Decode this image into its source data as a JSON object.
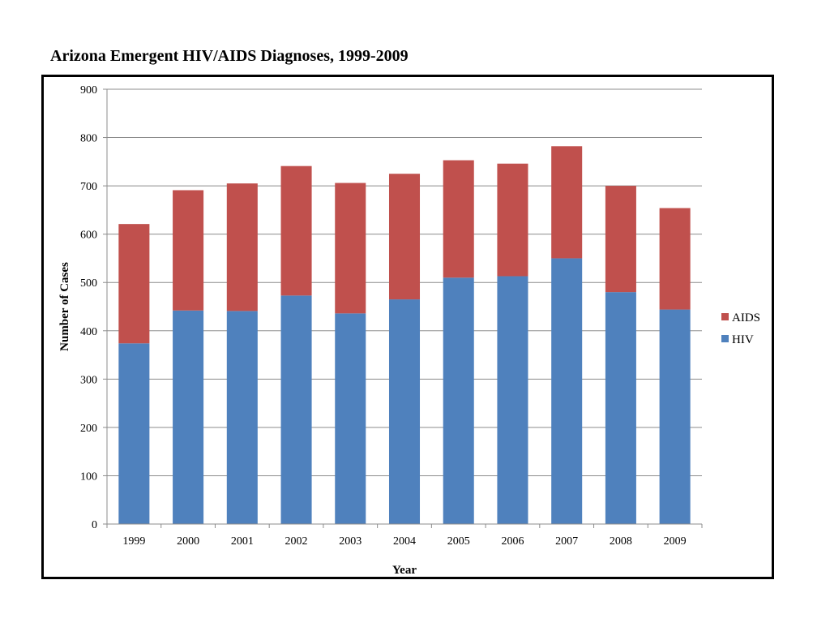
{
  "page": {
    "title": "Arizona Emergent HIV/AIDS Diagnoses, 1999-2009"
  },
  "colors": {
    "hiv": "#4f81bd",
    "aids": "#c0504d",
    "grid": "#8c8c8c",
    "axis": "#8c8c8c"
  },
  "chart_data": {
    "type": "bar",
    "stacked": true,
    "title": "Arizona Emergent HIV/AIDS Diagnoses, 1999-2009",
    "xlabel": "Year",
    "ylabel": "Number of Cases",
    "ylim": [
      0,
      900
    ],
    "yticks": [
      0,
      100,
      200,
      300,
      400,
      500,
      600,
      700,
      800,
      900
    ],
    "grid": true,
    "legend_position": "right",
    "categories": [
      "1999",
      "2000",
      "2001",
      "2002",
      "2003",
      "2004",
      "2005",
      "2006",
      "2007",
      "2008",
      "2009"
    ],
    "series": [
      {
        "name": "HIV",
        "color": "#4f81bd",
        "values": [
          374,
          442,
          441,
          473,
          436,
          465,
          510,
          513,
          550,
          480,
          444
        ]
      },
      {
        "name": "AIDS",
        "color": "#c0504d",
        "values": [
          247,
          249,
          264,
          268,
          270,
          260,
          243,
          233,
          232,
          220,
          210
        ]
      }
    ],
    "legend": [
      "AIDS",
      "HIV"
    ]
  }
}
